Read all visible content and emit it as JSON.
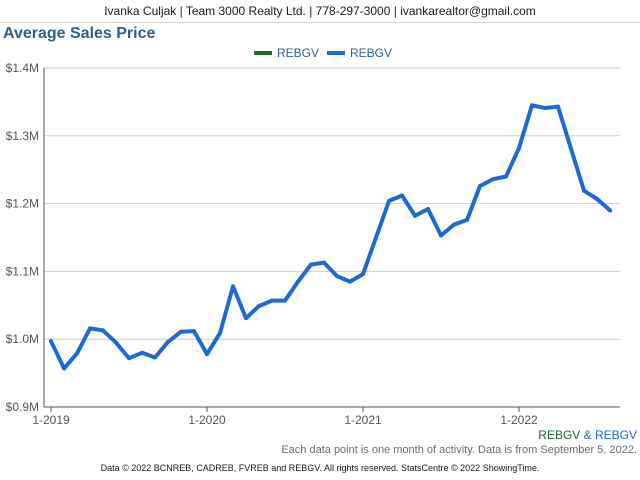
{
  "header": {
    "contact": "Ivanka Culjak | Team 3000 Realty Ltd. | 778-297-3000 | ivankarealtor@gmail.com"
  },
  "chart_data": {
    "type": "line",
    "title": "Average Sales Price",
    "xlabel": "",
    "ylabel": "",
    "legend": [
      {
        "name": "REBGV",
        "color": "#1e6b2e"
      },
      {
        "name": "REBGV",
        "color": "#1e6ad2"
      }
    ],
    "legend_position": "top-center",
    "grid": true,
    "ylim": [
      0.9,
      1.4
    ],
    "y_ticks": [
      "$0.9M",
      "$1.0M",
      "$1.1M",
      "$1.2M",
      "$1.3M",
      "$1.4M"
    ],
    "y_tick_values": [
      0.9,
      1.0,
      1.1,
      1.2,
      1.3,
      1.4
    ],
    "x_ticks": [
      "1-2019",
      "1-2020",
      "1-2021",
      "1-2022"
    ],
    "x": [
      "1-2019",
      "2-2019",
      "3-2019",
      "4-2019",
      "5-2019",
      "6-2019",
      "7-2019",
      "8-2019",
      "9-2019",
      "10-2019",
      "11-2019",
      "12-2019",
      "1-2020",
      "2-2020",
      "3-2020",
      "4-2020",
      "5-2020",
      "6-2020",
      "7-2020",
      "8-2020",
      "9-2020",
      "10-2020",
      "11-2020",
      "12-2020",
      "1-2021",
      "2-2021",
      "3-2021",
      "4-2021",
      "5-2021",
      "6-2021",
      "7-2021",
      "8-2021",
      "9-2021",
      "10-2021",
      "11-2021",
      "12-2021",
      "1-2022",
      "2-2022",
      "3-2022",
      "4-2022",
      "5-2022",
      "6-2022",
      "7-2022",
      "8-2022"
    ],
    "series": [
      {
        "name": "REBGV",
        "color": "#1e6ad2",
        "values": [
          0.997,
          0.957,
          0.979,
          1.016,
          1.013,
          0.995,
          0.972,
          0.98,
          0.973,
          0.996,
          1.011,
          1.012,
          0.978,
          1.009,
          1.078,
          1.031,
          1.049,
          1.057,
          1.057,
          1.085,
          1.11,
          1.113,
          1.093,
          1.085,
          1.096,
          1.15,
          1.204,
          1.212,
          1.182,
          1.192,
          1.153,
          1.169,
          1.176,
          1.226,
          1.236,
          1.24,
          1.282,
          1.345,
          1.341,
          1.343,
          1.281,
          1.219,
          1.207,
          1.19
        ]
      }
    ]
  },
  "footer": {
    "series_a": "REBGV",
    "amp": " & ",
    "series_b": "REBGV",
    "series_a_color": "#1e6b2e",
    "series_b_color": "#1e6ad2",
    "note": "Each data point is one month of activity. Data is from September 5, 2022.",
    "copyright": "Data © 2022 BCNREB, CADREB, FVREB and REBGV. All rights reserved. StatsCentre © 2022 ShowingTime."
  }
}
